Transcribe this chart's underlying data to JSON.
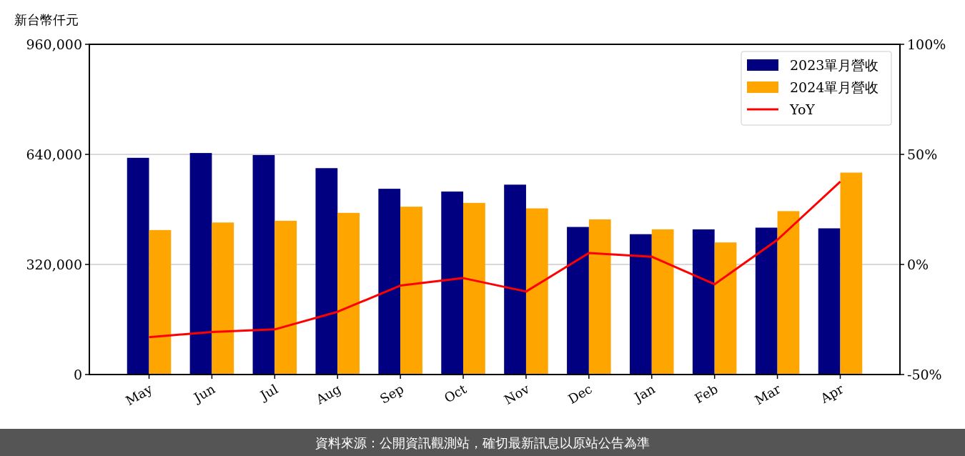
{
  "chart_data": {
    "type": "bar",
    "ylabel": "新台幣仟元",
    "categories": [
      "May",
      "Jun",
      "Jul",
      "Aug",
      "Sep",
      "Oct",
      "Nov",
      "Dec",
      "Jan",
      "Feb",
      "Mar",
      "Apr"
    ],
    "series": [
      {
        "name": "2023單月營收",
        "color": "#000080",
        "values": [
          630000,
          644000,
          638000,
          600000,
          540000,
          532000,
          552000,
          429000,
          408000,
          422000,
          427000,
          425000
        ]
      },
      {
        "name": "2024單月營收",
        "color": "#ffa500",
        "values": [
          420000,
          442000,
          447000,
          470000,
          488000,
          499000,
          483000,
          451000,
          422000,
          384000,
          475000,
          587000
        ]
      },
      {
        "name": "YoY",
        "type": "line",
        "axis": "y2",
        "color": "#ff0000",
        "values": [
          -33,
          -30.7,
          -29.5,
          -21.5,
          -9.6,
          -6.2,
          -12.3,
          5.2,
          3.5,
          -9,
          11.2,
          37.6
        ]
      }
    ],
    "ylim": [
      0,
      960000
    ],
    "yticks": [
      0,
      {
        "value": 320000,
        "label": "320,000"
      },
      {
        "value": 640000,
        "label": "640,000"
      },
      {
        "value": 960000,
        "label": "960,000"
      }
    ],
    "y2lim": [
      -50,
      100
    ],
    "y2ticks": [
      {
        "value": -50,
        "label": "-50%"
      },
      {
        "value": 0,
        "label": "0%"
      },
      {
        "value": 50,
        "label": "50%"
      },
      {
        "value": 100,
        "label": "100%"
      }
    ],
    "grid": "y",
    "legend": "top right",
    "annotations": [
      "資料來源：公開資訊觀測站，確切最新訊息以原站公告為準"
    ]
  }
}
